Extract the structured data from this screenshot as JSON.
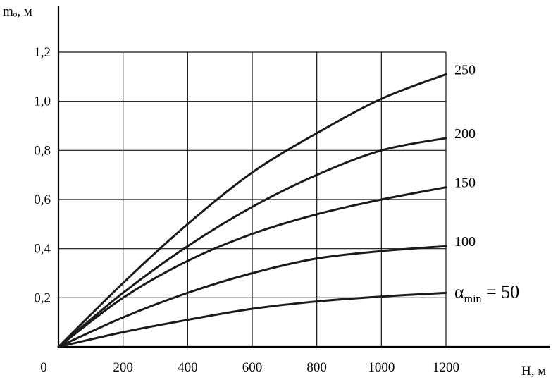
{
  "chart_data": {
    "type": "line",
    "title": "",
    "xlabel": "H, м",
    "ylabel": "mₒ, м",
    "xlim": [
      0,
      1200
    ],
    "ylim": [
      0,
      1.2
    ],
    "x_ticks": [
      "0",
      "200",
      "400",
      "600",
      "800",
      "1000",
      "1200"
    ],
    "y_ticks": [
      "0,2",
      "0,4",
      "0,6",
      "0,8",
      "1,0",
      "1,2"
    ],
    "x_tick_values": [
      0,
      200,
      400,
      600,
      800,
      1000,
      1200
    ],
    "y_tick_values": [
      0.2,
      0.4,
      0.6,
      0.8,
      1.0,
      1.2
    ],
    "grid": true,
    "x": [
      0,
      200,
      400,
      600,
      800,
      1000,
      1200
    ],
    "series": [
      {
        "label_text": "250",
        "values": [
          0,
          0.26,
          0.5,
          0.71,
          0.87,
          1.01,
          1.11
        ]
      },
      {
        "label_text": "200",
        "values": [
          0,
          0.22,
          0.41,
          0.57,
          0.7,
          0.8,
          0.85
        ]
      },
      {
        "label_text": "150",
        "values": [
          0,
          0.2,
          0.35,
          0.46,
          0.54,
          0.6,
          0.65
        ]
      },
      {
        "label_text": "100",
        "values": [
          0,
          0.12,
          0.22,
          0.3,
          0.36,
          0.39,
          0.41
        ]
      },
      {
        "label_prefix": "α",
        "label_sub": "min",
        "label_text": " = 50",
        "values": [
          0,
          0.06,
          0.11,
          0.155,
          0.185,
          0.205,
          0.22
        ]
      }
    ]
  }
}
